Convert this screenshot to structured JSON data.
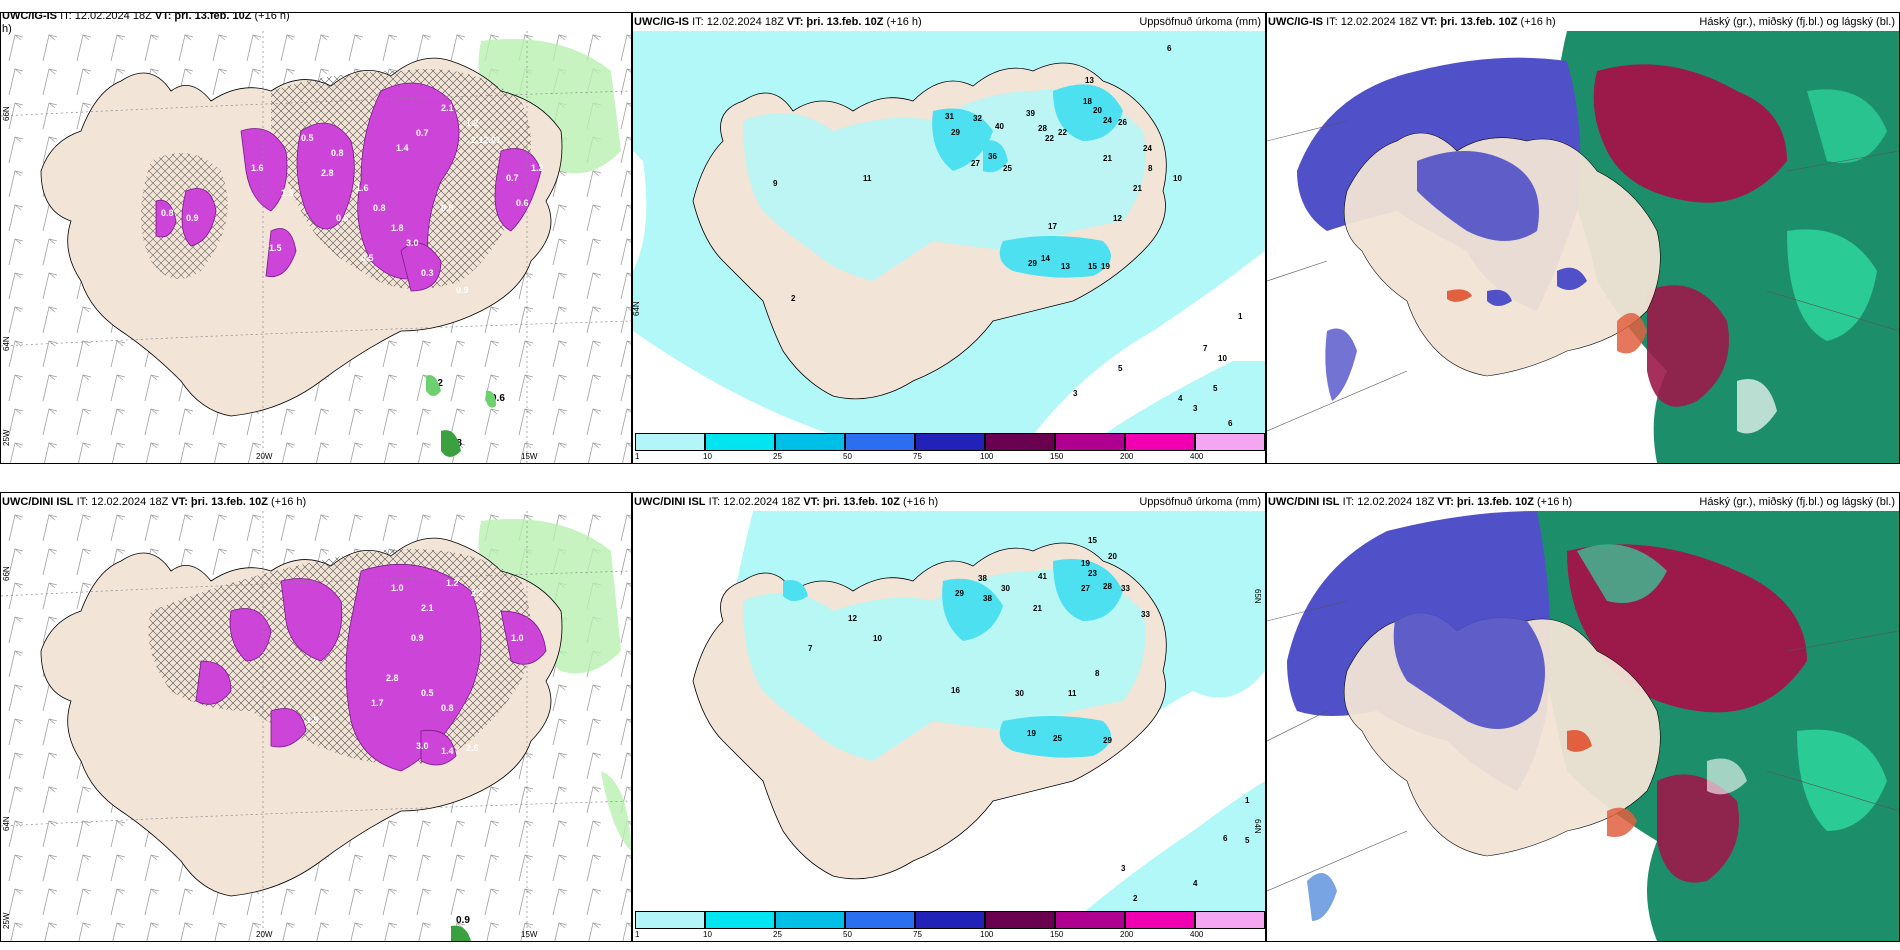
{
  "panels": [
    {
      "id": "top-left",
      "title_model": "UWC/IG-IS",
      "title_it": "IT: 12.02.2024 18Z",
      "title_vt": "VT: þri. 13.feb. 10Z",
      "title_lead": "(+16 h)",
      "extra_line": "h)",
      "right_label": "",
      "lon_labels": [
        "20W",
        "15W"
      ],
      "lat_labels": [
        "66N",
        "64N",
        "25W"
      ],
      "value_labels": [
        "2.1",
        "1.2",
        "2.12.01",
        "0.7",
        "1.4",
        "0.8",
        "2.8",
        "1.6",
        "0.8",
        "1.8",
        "3.0",
        "0.5",
        "0.3",
        "1.6",
        "0.9",
        "1.5",
        "0.9",
        "0.7",
        "0.6",
        "1.2",
        "0.5",
        "0.8",
        "1.3",
        "0.3",
        "0.9",
        "2.2",
        "0.6",
        "0.8"
      ]
    },
    {
      "id": "top-middle",
      "title_model": "UWC/IG-IS",
      "title_it": "IT: 12.02.2024 18Z",
      "title_vt": "VT: þri. 13.feb. 10Z",
      "title_lead": "(+16 h)",
      "right_label": "Uppsöfnuð úrkoma (mm)",
      "lat_labels": [
        "65N",
        "64N"
      ],
      "value_labels": [
        "6",
        "13",
        "18",
        "20",
        "22",
        "26",
        "31",
        "32",
        "40",
        "39",
        "28",
        "22",
        "24",
        "29",
        "27",
        "24",
        "36",
        "25",
        "17",
        "14",
        "29",
        "13",
        "15",
        "19",
        "21",
        "21",
        "8",
        "10",
        "12",
        "7",
        "5",
        "3",
        "2",
        "1",
        "11",
        "9",
        "10",
        "4",
        "6",
        "3",
        "5"
      ]
    },
    {
      "id": "top-right",
      "title_model": "UWC/IG-IS",
      "title_it": "IT: 12.02.2024 18Z",
      "title_vt": "VT: þri. 13.feb. 10Z",
      "title_lead": "(+16 h)",
      "right_label": "Háský (gr.), miðský (fj.bl.) og lágský (bl.)"
    },
    {
      "id": "bottom-left",
      "title_model": "UWC/DINI ISL",
      "title_it": "IT: 12.02.2024 18Z",
      "title_vt": "VT: þri. 13.feb. 10Z",
      "title_lead": "(+16 h)",
      "right_label": "",
      "lon_labels": [
        "20W",
        "15W"
      ],
      "lat_labels": [
        "66N",
        "64N",
        "25W"
      ],
      "value_labels": [
        "1.2",
        "2.2",
        "2.1",
        "1.0",
        "0.9",
        "2.8",
        "0.5",
        "1.7",
        "0.8",
        "1.5",
        "3.0",
        "1.4",
        "2.6",
        "1.0",
        "0.9"
      ]
    },
    {
      "id": "bottom-middle",
      "title_model": "UWC/DINI ISL",
      "title_it": "IT: 12.02.2024 18Z",
      "title_vt": "VT: þri. 13.feb. 10Z",
      "title_lead": "(+16 h)",
      "right_label": "Uppsöfnuð úrkoma (mm)",
      "lat_labels": [
        "65N",
        "64N"
      ],
      "value_labels": [
        "15",
        "19",
        "20",
        "23",
        "27",
        "28",
        "33",
        "41",
        "38",
        "30",
        "29",
        "38",
        "21",
        "33",
        "30",
        "16",
        "19",
        "25",
        "29",
        "11",
        "6",
        "5",
        "4",
        "3",
        "2",
        "1",
        "8",
        "12",
        "7",
        "10"
      ]
    },
    {
      "id": "bottom-right",
      "title_model": "UWC/DINI ISL",
      "title_it": "IT: 12.02.2024 18Z",
      "title_vt": "VT: þri. 13.feb. 10Z",
      "title_lead": "(+16 h)",
      "right_label": "Háský (gr.), miðský (fj.bl.) og lágský (bl.)"
    }
  ],
  "legend": {
    "labels": [
      "1",
      "10",
      "25",
      "50",
      "75",
      "100",
      "150",
      "200",
      "400"
    ],
    "colors": [
      "#b3f5f9",
      "#00e5f0",
      "#00bfe6",
      "#2b6ef0",
      "#2222b8",
      "#6a0050",
      "#b00090",
      "#f000b0",
      "#f4a6f0"
    ]
  },
  "colors": {
    "land": "#f2e4d6",
    "precip_light": "#b3f8f8",
    "precip_mid": "#4de0f0",
    "snow_purple": "#c040d0",
    "cloud_high_green": "#1c8f6a",
    "cloud_mid_red": "#9c1a4a",
    "cloud_low_blue": "#5050c8"
  }
}
